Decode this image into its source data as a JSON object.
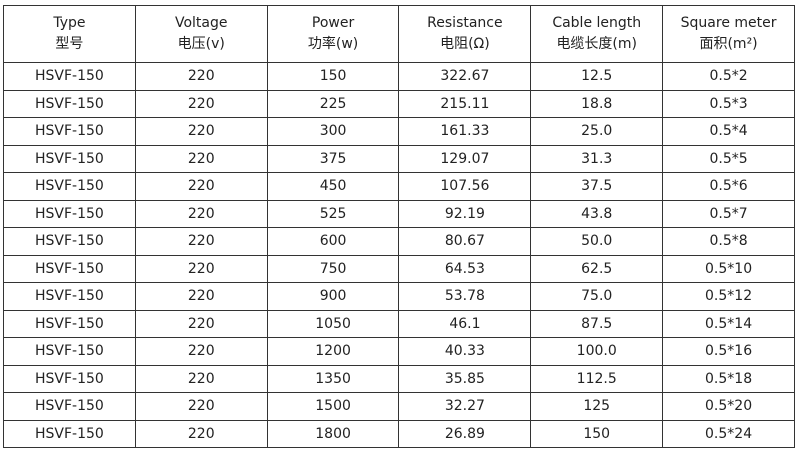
{
  "table": {
    "header": [
      {
        "en": "Type",
        "zh": "型号"
      },
      {
        "en": "Voltage",
        "zh": "电压(v)"
      },
      {
        "en": "Power",
        "zh": "功率(w)"
      },
      {
        "en": "Resistance",
        "zh": "电阻(Ω)"
      },
      {
        "en": "Cable length",
        "zh": "电缆长度(m)"
      },
      {
        "en": "Square meter",
        "zh": "面积(m²)"
      }
    ],
    "rows": [
      [
        "HSVF-150",
        "220",
        "150",
        "322.67",
        "12.5",
        "0.5*2"
      ],
      [
        "HSVF-150",
        "220",
        "225",
        "215.11",
        "18.8",
        "0.5*3"
      ],
      [
        "HSVF-150",
        "220",
        "300",
        "161.33",
        "25.0",
        "0.5*4"
      ],
      [
        "HSVF-150",
        "220",
        "375",
        "129.07",
        "31.3",
        "0.5*5"
      ],
      [
        "HSVF-150",
        "220",
        "450",
        "107.56",
        "37.5",
        "0.5*6"
      ],
      [
        "HSVF-150",
        "220",
        "525",
        "92.19",
        "43.8",
        "0.5*7"
      ],
      [
        "HSVF-150",
        "220",
        "600",
        "80.67",
        "50.0",
        "0.5*8"
      ],
      [
        "HSVF-150",
        "220",
        "750",
        "64.53",
        "62.5",
        "0.5*10"
      ],
      [
        "HSVF-150",
        "220",
        "900",
        "53.78",
        "75.0",
        "0.5*12"
      ],
      [
        "HSVF-150",
        "220",
        "1050",
        "46.1",
        "87.5",
        "0.5*14"
      ],
      [
        "HSVF-150",
        "220",
        "1200",
        "40.33",
        "100.0",
        "0.5*16"
      ],
      [
        "HSVF-150",
        "220",
        "1350",
        "35.85",
        "112.5",
        "0.5*18"
      ],
      [
        "HSVF-150",
        "220",
        "1500",
        "32.27",
        "125",
        "0.5*20"
      ],
      [
        "HSVF-150",
        "220",
        "1800",
        "26.89",
        "150",
        "0.5*24"
      ]
    ]
  }
}
